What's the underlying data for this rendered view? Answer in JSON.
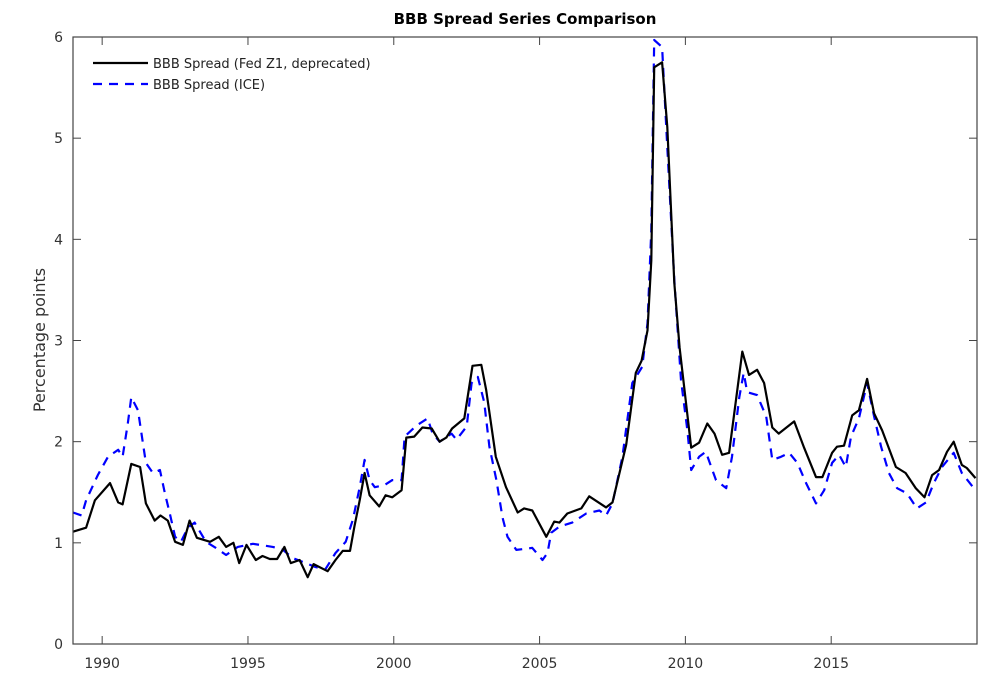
{
  "chart_data": {
    "type": "line",
    "title": "BBB Spread Series Comparison",
    "xlabel": "",
    "ylabel": "Percentage points",
    "xlim": [
      1989,
      2020
    ],
    "ylim": [
      0,
      6
    ],
    "xticks": [
      1990,
      1995,
      2000,
      2005,
      2010,
      2015
    ],
    "xtick_labels": [
      "1990",
      "1995",
      "2000",
      "2005",
      "2010",
      "2015"
    ],
    "yticks": [
      0,
      1,
      2,
      3,
      4,
      5,
      6
    ],
    "ytick_labels": [
      "0",
      "1",
      "2",
      "3",
      "4",
      "5",
      "6"
    ],
    "grid": false,
    "legend_position": "top-left",
    "series": [
      {
        "name": "BBB Spread (Fed Z1, deprecated)",
        "color": "#000000",
        "style": "solid",
        "x": [
          1989.0,
          1989.45,
          1989.75,
          1990.27,
          1990.55,
          1990.7,
          1991.0,
          1991.3,
          1991.5,
          1991.8,
          1992.0,
          1992.25,
          1992.5,
          1992.77,
          1993.0,
          1993.25,
          1993.7,
          1994.0,
          1994.25,
          1994.5,
          1994.7,
          1994.95,
          1995.27,
          1995.5,
          1995.75,
          1996.0,
          1996.25,
          1996.47,
          1996.77,
          1997.05,
          1997.25,
          1997.73,
          1998.0,
          1998.25,
          1998.5,
          1998.65,
          1998.83,
          1999.0,
          1999.17,
          1999.5,
          1999.72,
          1999.95,
          2000.27,
          2000.43,
          2000.7,
          2000.98,
          2001.3,
          2001.57,
          2001.8,
          2002.0,
          2002.42,
          2002.7,
          2003.0,
          2003.17,
          2003.5,
          2003.85,
          2004.25,
          2004.47,
          2004.75,
          2005.23,
          2005.5,
          2005.68,
          2005.95,
          2006.43,
          2006.7,
          2007.28,
          2007.5,
          2007.97,
          2008.3,
          2008.5,
          2008.7,
          2008.83,
          2008.93,
          2009.2,
          2009.38,
          2009.62,
          2009.8,
          2010.2,
          2010.47,
          2010.75,
          2011.0,
          2011.26,
          2011.5,
          2011.95,
          2012.18,
          2012.46,
          2012.7,
          2012.98,
          2013.2,
          2013.73,
          2014.07,
          2014.48,
          2014.7,
          2015.03,
          2015.2,
          2015.44,
          2015.72,
          2015.95,
          2016.23,
          2016.47,
          2016.75,
          2017.22,
          2017.55,
          2017.9,
          2018.2,
          2018.46,
          2018.7,
          2018.97,
          2019.2,
          2019.48,
          2019.65,
          2019.95
        ],
        "y": [
          1.11,
          1.15,
          1.42,
          1.59,
          1.4,
          1.38,
          1.78,
          1.75,
          1.39,
          1.22,
          1.27,
          1.22,
          1.01,
          0.98,
          1.22,
          1.05,
          1.01,
          1.06,
          0.96,
          1.0,
          0.8,
          0.98,
          0.83,
          0.87,
          0.84,
          0.84,
          0.96,
          0.8,
          0.83,
          0.66,
          0.79,
          0.72,
          0.83,
          0.92,
          0.92,
          1.16,
          1.42,
          1.69,
          1.47,
          1.36,
          1.47,
          1.45,
          1.52,
          2.04,
          2.05,
          2.14,
          2.13,
          2.0,
          2.04,
          2.13,
          2.23,
          2.75,
          2.76,
          2.51,
          1.85,
          1.55,
          1.3,
          1.34,
          1.32,
          1.06,
          1.21,
          1.2,
          1.29,
          1.34,
          1.46,
          1.35,
          1.4,
          1.97,
          2.68,
          2.8,
          3.1,
          3.79,
          5.7,
          5.75,
          5.11,
          3.57,
          2.93,
          1.94,
          1.99,
          2.18,
          2.08,
          1.87,
          1.89,
          2.89,
          2.66,
          2.71,
          2.58,
          2.14,
          2.08,
          2.2,
          1.94,
          1.65,
          1.65,
          1.89,
          1.95,
          1.96,
          2.26,
          2.31,
          2.62,
          2.28,
          2.11,
          1.75,
          1.69,
          1.54,
          1.45,
          1.67,
          1.72,
          1.9,
          2.0,
          1.77,
          1.74,
          1.64
        ]
      },
      {
        "name": "BBB Spread (ICE)",
        "color": "#0000ff",
        "style": "dashed",
        "x": [
          1989.0,
          1989.3,
          1989.45,
          1989.85,
          1990.2,
          1990.55,
          1990.7,
          1990.88,
          1991.0,
          1991.23,
          1991.4,
          1991.5,
          1991.74,
          1991.98,
          1992.15,
          1992.32,
          1992.5,
          1992.7,
          1992.94,
          1993.17,
          1993.56,
          1993.9,
          1994.25,
          1994.65,
          1995.17,
          1995.85,
          1996.2,
          1996.53,
          1996.98,
          1997.32,
          1997.66,
          1998.0,
          1998.35,
          1998.6,
          1998.83,
          1999.0,
          1999.17,
          1999.35,
          1999.68,
          1999.95,
          2000.27,
          2000.37,
          2000.78,
          2001.16,
          2001.33,
          2001.57,
          2001.98,
          2002.15,
          2002.5,
          2002.67,
          2002.88,
          2003.1,
          2003.28,
          2003.52,
          2003.73,
          2003.9,
          2004.2,
          2004.75,
          2005.1,
          2005.27,
          2005.4,
          2005.68,
          2006.12,
          2006.6,
          2007.05,
          2007.28,
          2007.5,
          2007.84,
          2008.18,
          2008.52,
          2008.7,
          2008.83,
          2008.93,
          2009.2,
          2009.38,
          2009.62,
          2009.85,
          2010.07,
          2010.2,
          2010.47,
          2010.7,
          2011.05,
          2011.4,
          2011.6,
          2011.85,
          2012.0,
          2012.12,
          2012.46,
          2012.77,
          2012.98,
          2013.28,
          2013.56,
          2013.84,
          2014.14,
          2014.48,
          2014.76,
          2015.03,
          2015.27,
          2015.5,
          2015.68,
          2015.95,
          2016.23,
          2016.47,
          2016.71,
          2016.98,
          2017.26,
          2017.6,
          2017.94,
          2018.25,
          2018.52,
          2018.8,
          2019.2,
          2019.48,
          2019.95
        ],
        "y": [
          1.3,
          1.27,
          1.42,
          1.67,
          1.85,
          1.92,
          1.85,
          2.18,
          2.44,
          2.31,
          1.98,
          1.79,
          1.69,
          1.72,
          1.49,
          1.29,
          1.06,
          1.01,
          1.15,
          1.2,
          1.01,
          0.95,
          0.88,
          0.96,
          0.99,
          0.96,
          0.93,
          0.85,
          0.8,
          0.76,
          0.74,
          0.9,
          1.01,
          1.23,
          1.55,
          1.82,
          1.62,
          1.55,
          1.57,
          1.62,
          1.62,
          2.05,
          2.16,
          2.23,
          2.08,
          2.0,
          2.08,
          2.02,
          2.15,
          2.58,
          2.64,
          2.39,
          1.95,
          1.62,
          1.25,
          1.06,
          0.93,
          0.95,
          0.83,
          0.9,
          1.1,
          1.16,
          1.2,
          1.29,
          1.32,
          1.27,
          1.39,
          1.85,
          2.58,
          2.74,
          3.17,
          4.09,
          5.97,
          5.9,
          4.91,
          3.6,
          2.61,
          2.11,
          1.72,
          1.85,
          1.9,
          1.62,
          1.54,
          1.85,
          2.44,
          2.68,
          2.49,
          2.46,
          2.25,
          1.82,
          1.85,
          1.89,
          1.79,
          1.59,
          1.39,
          1.52,
          1.79,
          1.87,
          1.75,
          2.05,
          2.23,
          2.58,
          2.25,
          1.95,
          1.69,
          1.54,
          1.49,
          1.34,
          1.4,
          1.59,
          1.75,
          1.89,
          1.69,
          1.52
        ]
      }
    ]
  }
}
